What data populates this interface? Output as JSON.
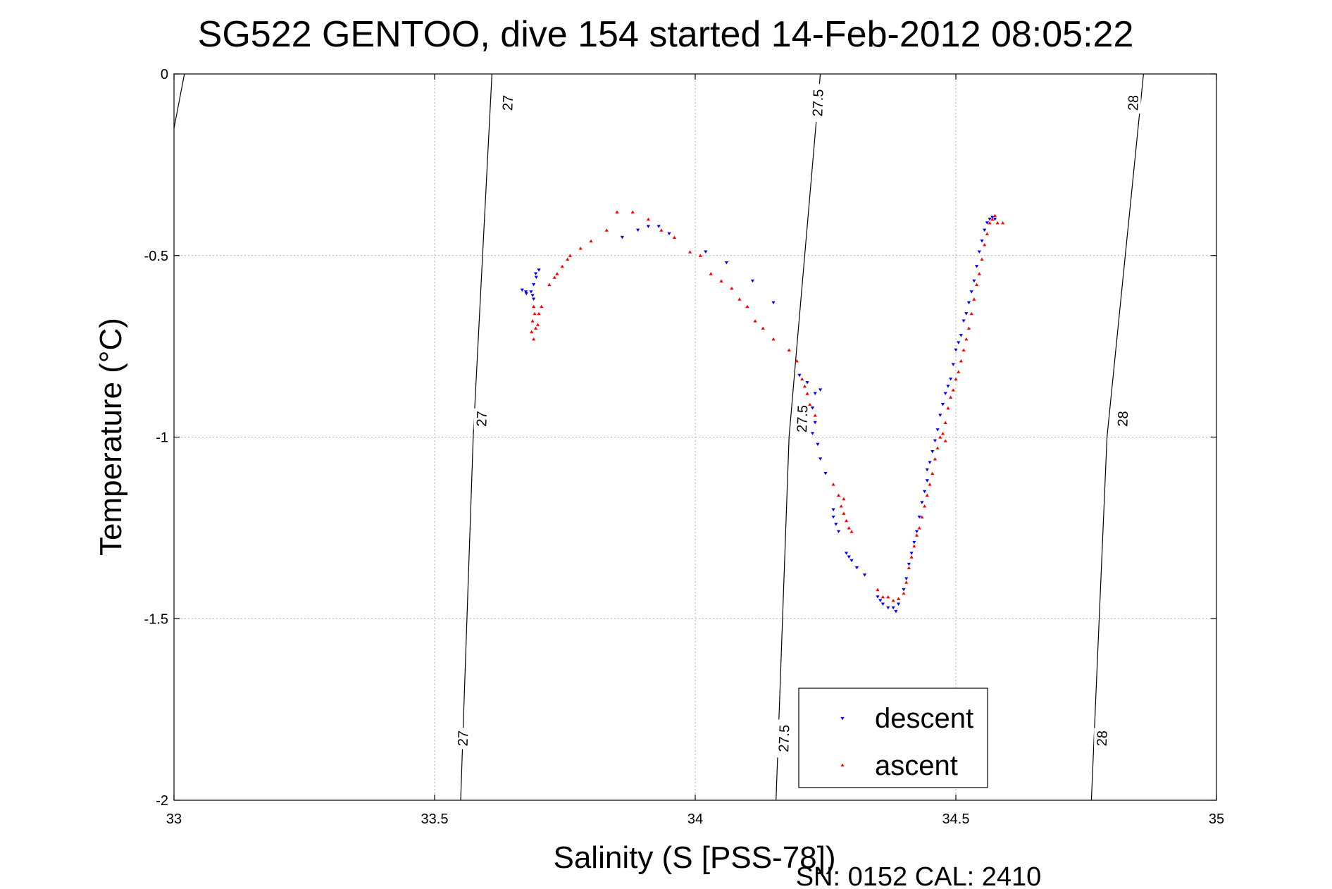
{
  "chart_data": {
    "type": "scatter",
    "title": "SG522 GENTOO, dive 154 started 14-Feb-2012 08:05:22",
    "xlabel": "Salinity (S [PSS-78])",
    "ylabel": "Temperature (°C)",
    "xlim": [
      33,
      35
    ],
    "ylim": [
      -2,
      0
    ],
    "xticks": [
      33,
      33.5,
      34,
      34.5,
      35
    ],
    "yticks": [
      0,
      -0.5,
      -1,
      -1.5,
      -2
    ],
    "xtick_labels": [
      "33",
      "33.5",
      "34",
      "34.5",
      "35"
    ],
    "ytick_labels": [
      "0",
      "-0.5",
      "-1",
      "-1.5",
      "-2"
    ],
    "grid": true,
    "legend_position": "bottom-center",
    "footer": "SN: 0152  CAL: 2410",
    "contours": [
      {
        "value": 27,
        "label": "27",
        "line": [
          [
            33.55,
            -2.0
          ],
          [
            33.574,
            -1.0
          ],
          [
            33.61,
            0.0
          ]
        ],
        "labels_at": [
          [
            33.554,
            -1.83
          ],
          [
            33.59,
            -0.95
          ],
          [
            33.64,
            -0.08
          ]
        ]
      },
      {
        "value": 27.5,
        "label": "27.5",
        "line": [
          [
            34.155,
            -2.0
          ],
          [
            34.18,
            -1.0
          ],
          [
            34.24,
            0.0
          ]
        ],
        "labels_at": [
          [
            34.17,
            -1.83
          ],
          [
            34.205,
            -0.95
          ],
          [
            34.235,
            -0.08
          ]
        ]
      },
      {
        "value": 28,
        "label": "28",
        "line": [
          [
            34.76,
            -2.0
          ],
          [
            34.79,
            -1.0
          ],
          [
            34.86,
            0.0
          ]
        ],
        "labels_at": [
          [
            34.78,
            -1.83
          ],
          [
            34.82,
            -0.95
          ],
          [
            34.84,
            -0.08
          ]
        ]
      },
      {
        "value": 26.5,
        "label": "",
        "line": [
          [
            33.0,
            -0.15
          ],
          [
            33.02,
            0.0
          ]
        ],
        "labels_at": []
      }
    ],
    "series": [
      {
        "name": "descent",
        "color": "#0000ff",
        "marker": "triangle-down",
        "points": [
          [
            33.7,
            -0.54
          ],
          [
            33.695,
            -0.56
          ],
          [
            33.69,
            -0.58
          ],
          [
            33.685,
            -0.6
          ],
          [
            33.675,
            -0.6
          ],
          [
            33.668,
            -0.595
          ],
          [
            33.676,
            -0.605
          ],
          [
            33.688,
            -0.61
          ],
          [
            33.69,
            -0.62
          ],
          [
            33.694,
            -0.55
          ],
          [
            33.86,
            -0.45
          ],
          [
            33.89,
            -0.43
          ],
          [
            33.91,
            -0.42
          ],
          [
            33.93,
            -0.42
          ],
          [
            33.95,
            -0.44
          ],
          [
            34.02,
            -0.49
          ],
          [
            34.06,
            -0.52
          ],
          [
            34.11,
            -0.57
          ],
          [
            34.15,
            -0.63
          ],
          [
            34.2,
            -0.83
          ],
          [
            34.215,
            -0.85
          ],
          [
            34.23,
            -0.88
          ],
          [
            34.225,
            -0.92
          ],
          [
            34.24,
            -0.87
          ],
          [
            34.23,
            -0.96
          ],
          [
            34.225,
            -0.99
          ],
          [
            34.235,
            -1.02
          ],
          [
            34.24,
            -1.06
          ],
          [
            34.25,
            -1.1
          ],
          [
            34.265,
            -1.2
          ],
          [
            34.265,
            -1.22
          ],
          [
            34.27,
            -1.24
          ],
          [
            34.275,
            -1.26
          ],
          [
            34.29,
            -1.32
          ],
          [
            34.295,
            -1.33
          ],
          [
            34.3,
            -1.34
          ],
          [
            34.31,
            -1.36
          ],
          [
            34.325,
            -1.38
          ],
          [
            34.35,
            -1.44
          ],
          [
            34.355,
            -1.45
          ],
          [
            34.36,
            -1.46
          ],
          [
            34.37,
            -1.47
          ],
          [
            34.38,
            -1.47
          ],
          [
            34.385,
            -1.48
          ],
          [
            34.39,
            -1.46
          ],
          [
            34.4,
            -1.42
          ],
          [
            34.405,
            -1.39
          ],
          [
            34.41,
            -1.35
          ],
          [
            34.415,
            -1.32
          ],
          [
            34.42,
            -1.29
          ],
          [
            34.425,
            -1.26
          ],
          [
            34.43,
            -1.22
          ],
          [
            34.435,
            -1.18
          ],
          [
            34.44,
            -1.15
          ],
          [
            34.445,
            -1.12
          ],
          [
            34.445,
            -1.09
          ],
          [
            34.45,
            -1.07
          ],
          [
            34.455,
            -1.04
          ],
          [
            34.46,
            -1.01
          ],
          [
            34.465,
            -0.98
          ],
          [
            34.47,
            -0.94
          ],
          [
            34.475,
            -0.91
          ],
          [
            34.48,
            -0.88
          ],
          [
            34.485,
            -0.86
          ],
          [
            34.49,
            -0.84
          ],
          [
            34.495,
            -0.8
          ],
          [
            34.5,
            -0.76
          ],
          [
            34.505,
            -0.74
          ],
          [
            34.51,
            -0.72
          ],
          [
            34.515,
            -0.68
          ],
          [
            34.52,
            -0.66
          ],
          [
            34.525,
            -0.63
          ],
          [
            34.53,
            -0.6
          ],
          [
            34.535,
            -0.57
          ],
          [
            34.54,
            -0.53
          ],
          [
            34.545,
            -0.49
          ],
          [
            34.55,
            -0.46
          ],
          [
            34.555,
            -0.43
          ],
          [
            34.56,
            -0.41
          ],
          [
            34.565,
            -0.4
          ],
          [
            34.57,
            -0.395
          ],
          [
            34.575,
            -0.4
          ]
        ]
      },
      {
        "name": "ascent",
        "color": "#ff0000",
        "marker": "triangle-up",
        "points": [
          [
            33.69,
            -0.64
          ],
          [
            33.692,
            -0.66
          ],
          [
            33.688,
            -0.68
          ],
          [
            33.694,
            -0.7
          ],
          [
            33.686,
            -0.71
          ],
          [
            33.69,
            -0.73
          ],
          [
            33.698,
            -0.69
          ],
          [
            33.7,
            -0.66
          ],
          [
            33.705,
            -0.64
          ],
          [
            33.72,
            -0.58
          ],
          [
            33.73,
            -0.56
          ],
          [
            33.735,
            -0.55
          ],
          [
            33.745,
            -0.53
          ],
          [
            33.755,
            -0.51
          ],
          [
            33.76,
            -0.5
          ],
          [
            33.78,
            -0.48
          ],
          [
            33.8,
            -0.46
          ],
          [
            33.83,
            -0.43
          ],
          [
            33.85,
            -0.38
          ],
          [
            33.88,
            -0.38
          ],
          [
            33.91,
            -0.4
          ],
          [
            33.935,
            -0.43
          ],
          [
            33.96,
            -0.45
          ],
          [
            33.99,
            -0.49
          ],
          [
            34.01,
            -0.5
          ],
          [
            34.03,
            -0.55
          ],
          [
            34.05,
            -0.57
          ],
          [
            34.07,
            -0.59
          ],
          [
            34.085,
            -0.62
          ],
          [
            34.1,
            -0.64
          ],
          [
            34.115,
            -0.68
          ],
          [
            34.13,
            -0.7
          ],
          [
            34.15,
            -0.73
          ],
          [
            34.18,
            -0.76
          ],
          [
            34.195,
            -0.79
          ],
          [
            34.205,
            -0.84
          ],
          [
            34.21,
            -0.86
          ],
          [
            34.215,
            -0.88
          ],
          [
            34.22,
            -0.91
          ],
          [
            34.23,
            -0.94
          ],
          [
            34.265,
            -1.13
          ],
          [
            34.275,
            -1.16
          ],
          [
            34.28,
            -1.19
          ],
          [
            34.285,
            -1.21
          ],
          [
            34.29,
            -1.23
          ],
          [
            34.295,
            -1.25
          ],
          [
            34.3,
            -1.26
          ],
          [
            34.285,
            -1.17
          ],
          [
            34.35,
            -1.42
          ],
          [
            34.36,
            -1.44
          ],
          [
            34.37,
            -1.44
          ],
          [
            34.38,
            -1.45
          ],
          [
            34.39,
            -1.445
          ],
          [
            34.4,
            -1.43
          ],
          [
            34.405,
            -1.4
          ],
          [
            34.41,
            -1.36
          ],
          [
            34.415,
            -1.33
          ],
          [
            34.42,
            -1.3
          ],
          [
            34.425,
            -1.27
          ],
          [
            34.43,
            -1.25
          ],
          [
            34.435,
            -1.22
          ],
          [
            34.44,
            -1.19
          ],
          [
            34.445,
            -1.16
          ],
          [
            34.45,
            -1.13
          ],
          [
            34.455,
            -1.1
          ],
          [
            34.46,
            -1.06
          ],
          [
            34.465,
            -1.03
          ],
          [
            34.47,
            -1.0
          ],
          [
            34.475,
            -0.99
          ],
          [
            34.48,
            -1.01
          ],
          [
            34.48,
            -0.96
          ],
          [
            34.485,
            -0.92
          ],
          [
            34.49,
            -0.89
          ],
          [
            34.495,
            -0.87
          ],
          [
            34.5,
            -0.84
          ],
          [
            34.505,
            -0.82
          ],
          [
            34.51,
            -0.79
          ],
          [
            34.515,
            -0.76
          ],
          [
            34.52,
            -0.73
          ],
          [
            34.525,
            -0.7
          ],
          [
            34.53,
            -0.66
          ],
          [
            34.535,
            -0.62
          ],
          [
            34.54,
            -0.58
          ],
          [
            34.545,
            -0.55
          ],
          [
            34.55,
            -0.51
          ],
          [
            34.555,
            -0.47
          ],
          [
            34.56,
            -0.44
          ],
          [
            34.565,
            -0.41
          ],
          [
            34.57,
            -0.4
          ],
          [
            34.575,
            -0.39
          ],
          [
            34.58,
            -0.41
          ],
          [
            34.59,
            -0.41
          ]
        ]
      }
    ]
  }
}
